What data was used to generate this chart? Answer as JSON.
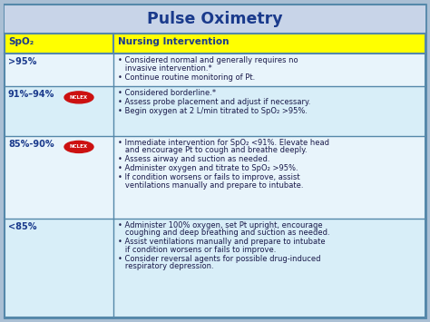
{
  "title": "Pulse Oximetry",
  "title_bg": "#c8d4e8",
  "title_color": "#1a3a8c",
  "header_bg": "#ffff00",
  "header_col1": "SpO₂",
  "header_col2": "Nursing Intervention",
  "header_color": "#1a3a8c",
  "border_color": "#5588aa",
  "outer_bg": "#aabfd4",
  "rows": [
    {
      "spo2": ">95%",
      "nclex": false,
      "bg": "#e8f4fb",
      "interventions": [
        "Considered normal and generally requires no\ninvasive intervention.*",
        "Continue routine monitoring of Pt."
      ]
    },
    {
      "spo2": "91%–94%",
      "nclex": true,
      "bg": "#d8eef8",
      "interventions": [
        "Considered borderline.*",
        "Assess probe placement and adjust if necessary.",
        "Begin oxygen at 2 L/min titrated to SpO₂ >95%."
      ]
    },
    {
      "spo2": "85%-90%",
      "nclex": true,
      "bg": "#e8f4fb",
      "interventions": [
        "Immediate intervention for SpO₂ <91%. Elevate head\nand encourage Pt to cough and breathe deeply.",
        "Assess airway and suction as needed.",
        "Administer oxygen and titrate to SpO₂ >95%.",
        "If condition worsens or fails to improve, assist\nventilations manually and prepare to intubate."
      ]
    },
    {
      "spo2": "<85%",
      "nclex": false,
      "bg": "#d8eef8",
      "interventions": [
        "Administer 100% oxygen, set Pt upright, encourage\ncoughing and deep breathing and suction as needed.",
        "Assist ventilations manually and prepare to intubate\nif condition worsens or fails to improve.",
        "Consider reversal agents for possible drug-induced\nrespiratory depression."
      ]
    }
  ],
  "figsize": [
    4.74,
    3.55
  ],
  "dpi": 100
}
